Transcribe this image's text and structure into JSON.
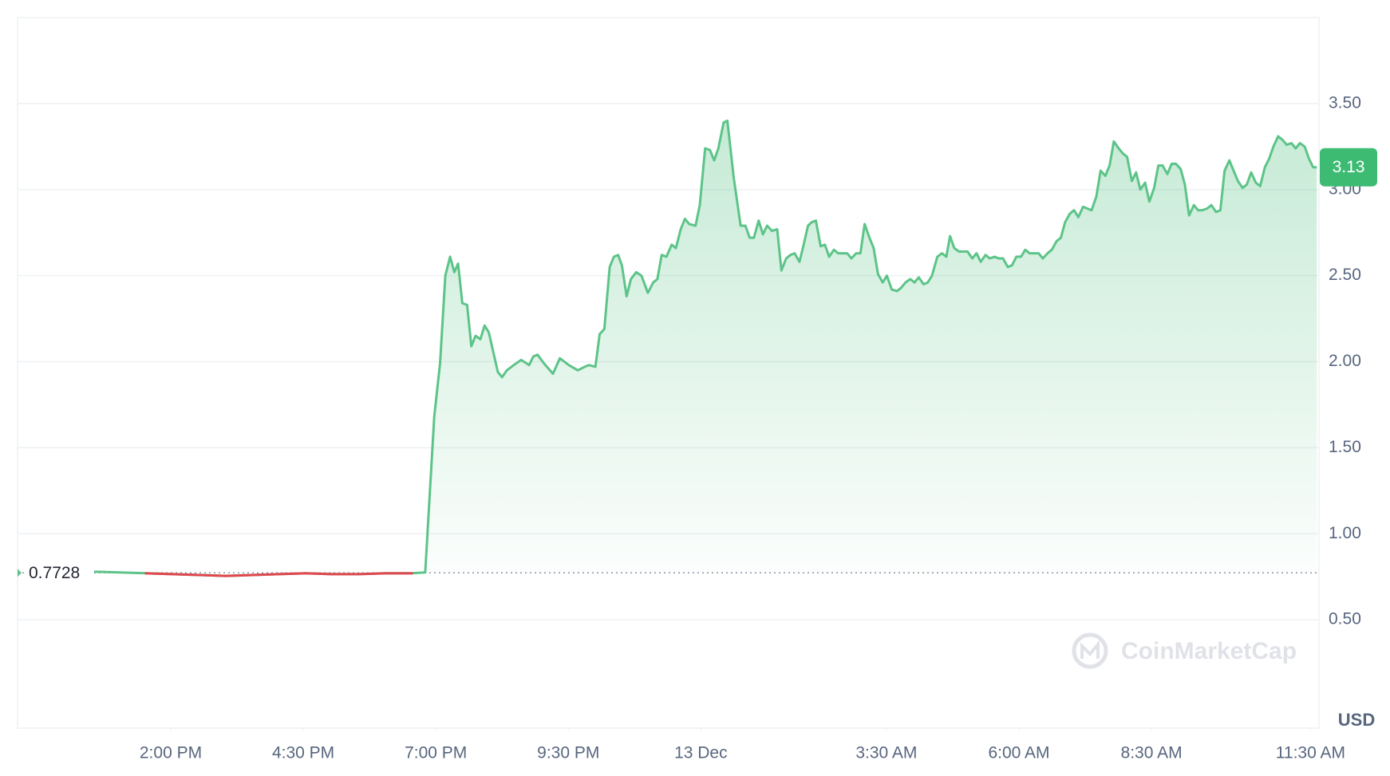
{
  "chart_data": {
    "type": "area",
    "x": [
      -11.47,
      -10.97,
      -10.47,
      -9.97,
      -9.46,
      -8.96,
      -8.46,
      -7.96,
      -7.46,
      -6.96,
      -6.45,
      -5.95,
      -5.45,
      -5.2,
      -5.03,
      -4.92,
      -4.82,
      -4.73,
      -4.65,
      -4.58,
      -4.5,
      -4.41,
      -4.33,
      -4.25,
      -4.16,
      -4.08,
      -4.0,
      -3.83,
      -3.75,
      -3.66,
      -3.53,
      -3.39,
      -3.24,
      -3.16,
      -3.08,
      -2.96,
      -2.79,
      -2.66,
      -2.49,
      -2.32,
      -2.19,
      -2.11,
      -1.99,
      -1.91,
      -1.82,
      -1.72,
      -1.64,
      -1.56,
      -1.49,
      -1.4,
      -1.32,
      -1.22,
      -1.12,
      -1.0,
      -0.9,
      -0.82,
      -0.74,
      -0.65,
      -0.55,
      -0.47,
      -0.38,
      -0.3,
      -0.22,
      -0.1,
      -0.02,
      0.08,
      0.17,
      0.25,
      0.33,
      0.43,
      0.5,
      0.62,
      0.75,
      0.84,
      0.92,
      1.0,
      1.09,
      1.17,
      1.25,
      1.34,
      1.44,
      1.52,
      1.61,
      1.69,
      1.77,
      1.86,
      1.94,
      2.02,
      2.09,
      2.17,
      2.26,
      2.34,
      2.42,
      2.51,
      2.59,
      2.68,
      2.76,
      2.84,
      2.93,
      3.01,
      3.09,
      3.18,
      3.26,
      3.34,
      3.43,
      3.51,
      3.6,
      3.7,
      3.78,
      3.86,
      3.95,
      4.03,
      4.11,
      4.2,
      4.28,
      4.36,
      4.46,
      4.55,
      4.63,
      4.7,
      4.78,
      4.87,
      4.95,
      5.03,
      5.12,
      5.2,
      5.28,
      5.37,
      5.45,
      5.54,
      5.62,
      5.7,
      5.79,
      5.87,
      5.95,
      6.04,
      6.12,
      6.2,
      6.29,
      6.37,
      6.45,
      6.54,
      6.62,
      6.71,
      6.79,
      6.87,
      6.96,
      7.04,
      7.12,
      7.21,
      7.29,
      7.37,
      7.46,
      7.54,
      7.63,
      7.71,
      7.79,
      7.88,
      7.96,
      8.04,
      8.13,
      8.21,
      8.29,
      8.38,
      8.46,
      8.55,
      8.63,
      8.71,
      8.8,
      8.88,
      8.96,
      9.05,
      9.13,
      9.21,
      9.3,
      9.38,
      9.46,
      9.55,
      9.63,
      9.72,
      9.8,
      9.88,
      9.97,
      10.05,
      10.13,
      10.22,
      10.3,
      10.38,
      10.47,
      10.55,
      10.64,
      10.72,
      10.8,
      10.89,
      10.97,
      11.05,
      11.14,
      11.22,
      11.3,
      11.39,
      11.47,
      11.55,
      11.62
    ],
    "values": [
      0.78,
      0.775,
      0.77,
      0.765,
      0.76,
      0.755,
      0.76,
      0.765,
      0.77,
      0.765,
      0.765,
      0.77,
      0.77,
      0.775,
      1.68,
      1.99,
      2.5,
      2.61,
      2.52,
      2.57,
      2.34,
      2.33,
      2.09,
      2.15,
      2.13,
      2.21,
      2.17,
      1.94,
      1.91,
      1.95,
      1.98,
      2.01,
      1.98,
      2.03,
      2.04,
      1.99,
      1.93,
      2.02,
      1.98,
      1.95,
      1.97,
      1.98,
      1.97,
      2.16,
      2.19,
      2.55,
      2.61,
      2.62,
      2.56,
      2.38,
      2.48,
      2.52,
      2.5,
      2.4,
      2.46,
      2.48,
      2.62,
      2.61,
      2.68,
      2.66,
      2.77,
      2.83,
      2.8,
      2.79,
      2.91,
      3.24,
      3.23,
      3.17,
      3.24,
      3.39,
      3.4,
      3.07,
      2.79,
      2.79,
      2.72,
      2.72,
      2.82,
      2.74,
      2.79,
      2.76,
      2.77,
      2.53,
      2.6,
      2.62,
      2.63,
      2.58,
      2.68,
      2.79,
      2.81,
      2.82,
      2.67,
      2.68,
      2.61,
      2.65,
      2.63,
      2.63,
      2.63,
      2.6,
      2.63,
      2.63,
      2.8,
      2.72,
      2.66,
      2.51,
      2.46,
      2.5,
      2.42,
      2.41,
      2.43,
      2.46,
      2.48,
      2.46,
      2.49,
      2.45,
      2.46,
      2.5,
      2.61,
      2.63,
      2.61,
      2.73,
      2.66,
      2.64,
      2.64,
      2.64,
      2.6,
      2.63,
      2.58,
      2.62,
      2.6,
      2.61,
      2.6,
      2.6,
      2.55,
      2.56,
      2.61,
      2.61,
      2.65,
      2.63,
      2.63,
      2.63,
      2.6,
      2.63,
      2.65,
      2.7,
      2.72,
      2.81,
      2.86,
      2.88,
      2.84,
      2.9,
      2.89,
      2.88,
      2.96,
      3.11,
      3.08,
      3.14,
      3.28,
      3.24,
      3.21,
      3.19,
      3.05,
      3.1,
      3.0,
      3.04,
      2.93,
      3.01,
      3.14,
      3.14,
      3.09,
      3.15,
      3.15,
      3.12,
      3.03,
      2.85,
      2.91,
      2.88,
      2.88,
      2.89,
      2.91,
      2.87,
      2.88,
      3.11,
      3.17,
      3.11,
      3.05,
      3.01,
      3.03,
      3.1,
      3.04,
      3.02,
      3.13,
      3.18,
      3.25,
      3.31,
      3.29,
      3.26,
      3.27,
      3.24,
      3.27,
      3.25,
      3.18,
      3.13,
      3.13
    ],
    "color": "#5cc488",
    "below_color": "#e0464e",
    "open_price": 0.7728,
    "last_price_label": 3.13,
    "currency_label": "USD",
    "watermark": "CoinMarketCap",
    "xlim": [
      -12.89,
      11.66
    ],
    "xticks": [
      {
        "value": -10,
        "label": "2:00 PM"
      },
      {
        "value": -7.5,
        "label": "4:30 PM"
      },
      {
        "value": -5,
        "label": "7:00 PM"
      },
      {
        "value": -2.5,
        "label": "9:30 PM"
      },
      {
        "value": 0,
        "label": "13 Dec"
      },
      {
        "value": 3.5,
        "label": "3:30 AM"
      },
      {
        "value": 6,
        "label": "6:00 AM"
      },
      {
        "value": 8.5,
        "label": "8:30 AM"
      },
      {
        "value": 11.5,
        "label": "11:30 AM"
      }
    ],
    "ylim": [
      -0.13,
      4.0
    ],
    "yticks": [
      {
        "value": 0.5,
        "label": "0.50"
      },
      {
        "value": 1,
        "label": "1.00"
      },
      {
        "value": 1.5,
        "label": "1.50"
      },
      {
        "value": 2,
        "label": "2.00"
      },
      {
        "value": 2.5,
        "label": "2.50"
      },
      {
        "value": 3,
        "label": "3.00"
      },
      {
        "value": 3.5,
        "label": "3.50"
      }
    ],
    "grid": true
  }
}
